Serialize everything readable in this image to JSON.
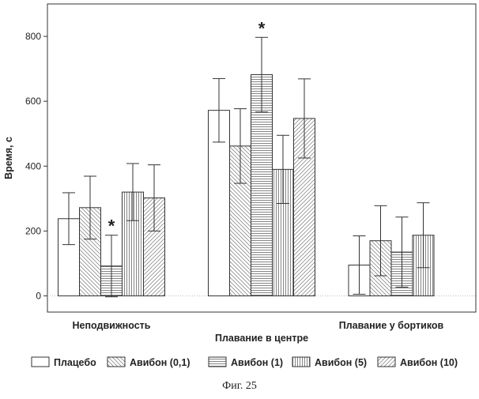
{
  "chart_data": {
    "type": "bar",
    "categories": [
      "Неподвижность",
      "Плавание в центре",
      "Плавание у бортиков"
    ],
    "series": [
      {
        "name": "Плацебо",
        "values": [
          238,
          572,
          95
        ],
        "errors": [
          80,
          98,
          90
        ],
        "significant": [
          false,
          false,
          false
        ],
        "pattern": "none"
      },
      {
        "name": "Авибон (0,1)",
        "values": [
          272,
          462,
          170
        ],
        "errors": [
          97,
          115,
          108
        ],
        "significant": [
          false,
          false,
          false
        ],
        "pattern": "diag-back"
      },
      {
        "name": "Авибон (1)",
        "values": [
          92,
          682,
          135
        ],
        "errors": [
          95,
          115,
          108
        ],
        "significant": [
          true,
          true,
          false
        ],
        "pattern": "horizontal"
      },
      {
        "name": "Авибон (5)",
        "values": [
          320,
          390,
          187
        ],
        "errors": [
          88,
          105,
          100
        ],
        "significant": [
          false,
          false,
          false
        ],
        "pattern": "vertical"
      },
      {
        "name": "Авибон (10)",
        "values": [
          302,
          547,
          0
        ],
        "errors": [
          102,
          122,
          0
        ],
        "significant": [
          false,
          false,
          false
        ],
        "pattern": "diag-fwd",
        "present": [
          true,
          true,
          false
        ]
      }
    ],
    "title": "",
    "xlabel": "Плавание в центре",
    "ylabel": "Время, с",
    "ylim": [
      -50,
      900
    ],
    "yticks": [
      0,
      200,
      400,
      600,
      800
    ],
    "significance_marker": "*",
    "grid": false,
    "legend_position": "bottom"
  },
  "caption": "Фиг. 25",
  "colors": {
    "bar_fill": "#ffffff",
    "bar_stroke": "#333333",
    "pattern_stroke": "#555555"
  }
}
